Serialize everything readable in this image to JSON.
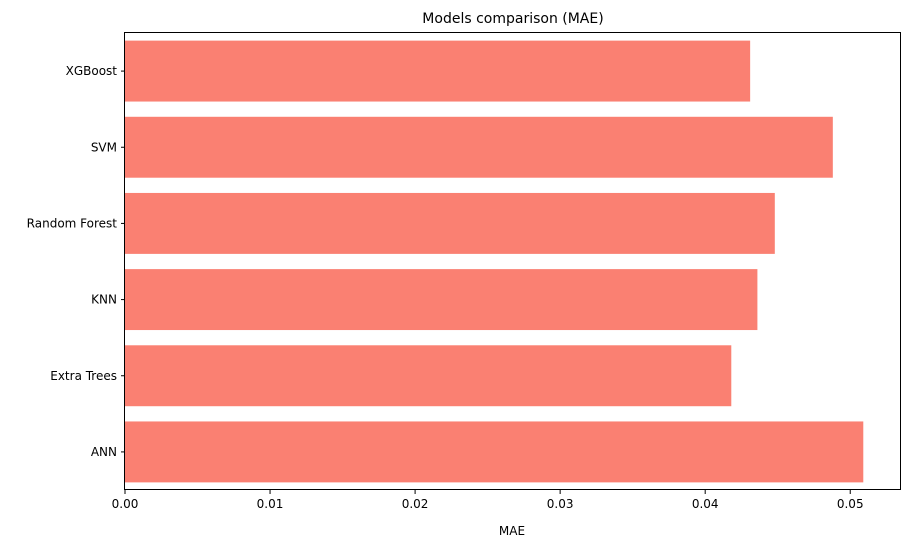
{
  "chart_data": {
    "type": "bar",
    "orientation": "horizontal",
    "title": "Models comparison (MAE)",
    "xlabel": "MAE",
    "ylabel": "",
    "categories": [
      "ANN",
      "Extra Trees",
      "KNN",
      "Random Forest",
      "SVM",
      "XGBoost"
    ],
    "values": [
      0.0509,
      0.0418,
      0.0436,
      0.0448,
      0.0488,
      0.0431
    ],
    "xlim": [
      0,
      0.0535
    ],
    "xticks": [
      0.0,
      0.01,
      0.02,
      0.03,
      0.04,
      0.05
    ],
    "xtick_labels": [
      "0.00",
      "0.01",
      "0.02",
      "0.03",
      "0.04",
      "0.05"
    ],
    "bar_color": "#fa8072",
    "grid": false,
    "legend": "none"
  }
}
